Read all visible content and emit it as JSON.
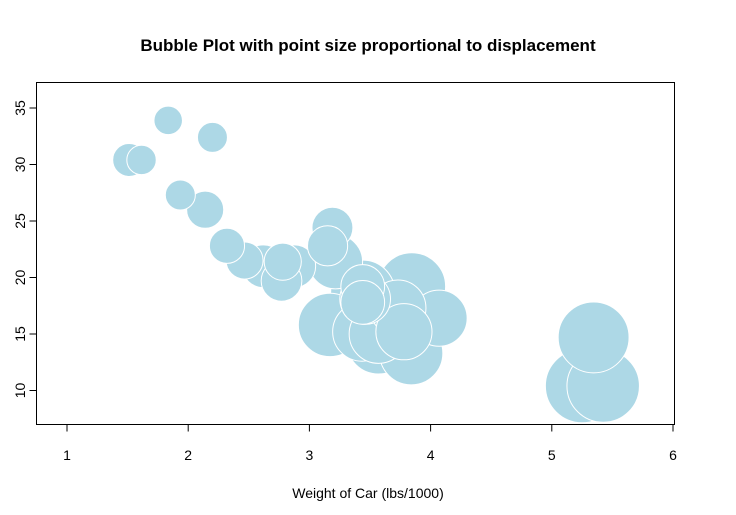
{
  "chart_data": {
    "type": "scatter",
    "title": "Bubble Plot with point size proportional to displacement",
    "xlabel": "Weight of Car (lbs/1000)",
    "ylabel": "",
    "xlim": [
      1,
      6
    ],
    "ylim": [
      7,
      37
    ],
    "x_ticks": [
      1,
      2,
      3,
      4,
      5,
      6
    ],
    "y_ticks": [
      10,
      15,
      20,
      25,
      30,
      35
    ],
    "grid": false,
    "legend": "none",
    "bubble_color": "#add8e6",
    "bubble_border_color": "#ffffff",
    "size_variable": "displacement",
    "points": [
      {
        "x": 2.62,
        "y": 21.0,
        "disp": 160.0
      },
      {
        "x": 2.875,
        "y": 21.0,
        "disp": 160.0
      },
      {
        "x": 2.32,
        "y": 22.8,
        "disp": 108.0
      },
      {
        "x": 3.215,
        "y": 21.4,
        "disp": 258.0
      },
      {
        "x": 3.44,
        "y": 18.7,
        "disp": 360.0
      },
      {
        "x": 3.46,
        "y": 18.1,
        "disp": 225.0
      },
      {
        "x": 3.57,
        "y": 14.3,
        "disp": 360.0
      },
      {
        "x": 3.19,
        "y": 24.4,
        "disp": 146.7
      },
      {
        "x": 3.15,
        "y": 22.8,
        "disp": 140.8
      },
      {
        "x": 3.44,
        "y": 19.2,
        "disp": 167.6
      },
      {
        "x": 3.44,
        "y": 17.8,
        "disp": 167.6
      },
      {
        "x": 4.07,
        "y": 16.4,
        "disp": 275.8
      },
      {
        "x": 3.73,
        "y": 17.3,
        "disp": 275.8
      },
      {
        "x": 3.78,
        "y": 15.2,
        "disp": 275.8
      },
      {
        "x": 5.25,
        "y": 10.4,
        "disp": 472.0
      },
      {
        "x": 5.424,
        "y": 10.4,
        "disp": 460.0
      },
      {
        "x": 5.345,
        "y": 14.7,
        "disp": 440.0
      },
      {
        "x": 2.2,
        "y": 32.4,
        "disp": 78.7
      },
      {
        "x": 1.615,
        "y": 30.4,
        "disp": 75.7
      },
      {
        "x": 1.835,
        "y": 33.9,
        "disp": 71.1
      },
      {
        "x": 2.465,
        "y": 21.5,
        "disp": 120.1
      },
      {
        "x": 3.52,
        "y": 15.5,
        "disp": 318.0
      },
      {
        "x": 3.435,
        "y": 15.2,
        "disp": 304.0
      },
      {
        "x": 3.84,
        "y": 13.3,
        "disp": 350.0
      },
      {
        "x": 3.845,
        "y": 19.2,
        "disp": 400.0
      },
      {
        "x": 1.935,
        "y": 27.3,
        "disp": 79.0
      },
      {
        "x": 2.14,
        "y": 26.0,
        "disp": 120.3
      },
      {
        "x": 1.513,
        "y": 30.4,
        "disp": 95.1
      },
      {
        "x": 3.17,
        "y": 15.8,
        "disp": 351.0
      },
      {
        "x": 2.77,
        "y": 19.7,
        "disp": 145.0
      },
      {
        "x": 3.57,
        "y": 15.0,
        "disp": 301.0
      },
      {
        "x": 2.78,
        "y": 21.4,
        "disp": 121.0
      }
    ]
  }
}
